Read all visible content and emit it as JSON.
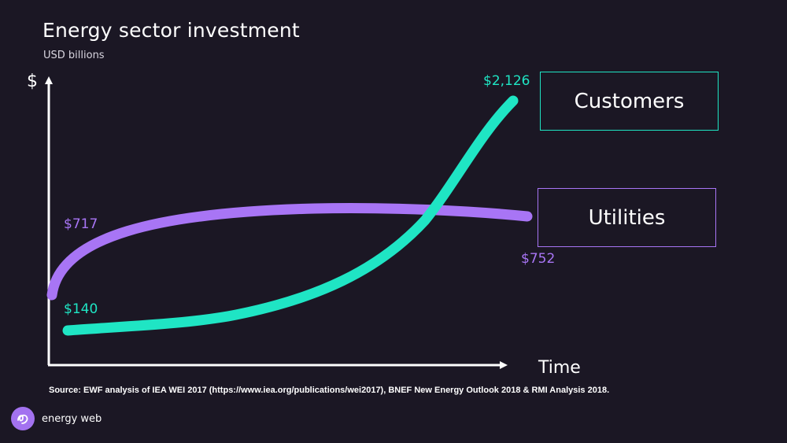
{
  "title": "Energy sector investment",
  "subtitle": "USD billions",
  "source": "Source:  EWF analysis of IEA WEI 2017 (https://www.iea.org/publications/wei2017), BNEF New Energy Outlook 2018 & RMI Analysis 2018.",
  "logo": {
    "text": "energy web",
    "icon": "energy-web-logo-icon"
  },
  "colors": {
    "background": "#1b1724",
    "customers": "#1fe5c4",
    "utilities": "#a875f5",
    "axis": "#ffffff"
  },
  "chart_data": {
    "type": "line",
    "xlabel": "Time",
    "ylabel": "$",
    "grid": false,
    "axis_ticks": false,
    "legend_placement": "right",
    "series": [
      {
        "name": "Customers",
        "start_value": 140,
        "end_value": 2126,
        "start_label": "$140",
        "end_label": "$2,126",
        "shape": "exponential growth",
        "color": "#1fe5c4"
      },
      {
        "name": "Utilities",
        "start_value": 717,
        "end_value": 752,
        "start_label": "$717",
        "end_label": "$752",
        "shape": "rises then plateaus, slight decline at end",
        "color": "#a875f5"
      }
    ]
  }
}
